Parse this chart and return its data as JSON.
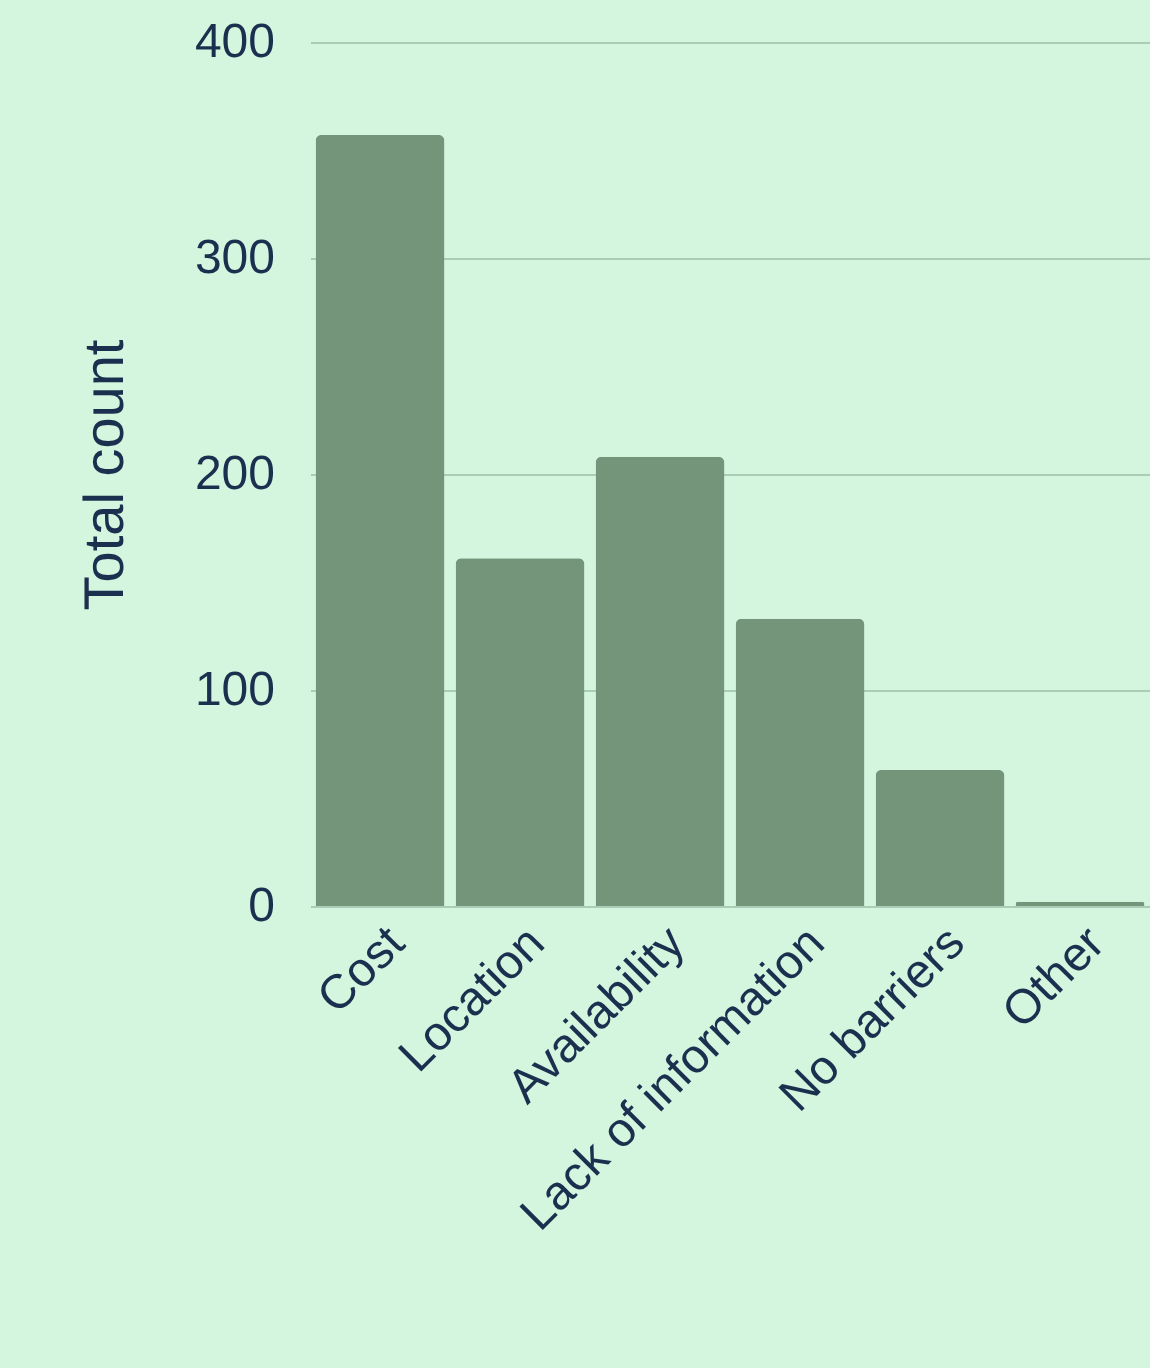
{
  "chart_data": {
    "type": "bar",
    "ylabel": "Total count",
    "categories": [
      "Cost",
      "Location",
      "Availability",
      "Lack of information",
      "No barriers",
      "Other"
    ],
    "values": [
      357,
      161,
      208,
      133,
      63,
      2
    ],
    "color": "#74957a",
    "ylim": [
      0,
      400
    ],
    "yticks": [
      0,
      100,
      200,
      300,
      400
    ],
    "grid": "y"
  }
}
